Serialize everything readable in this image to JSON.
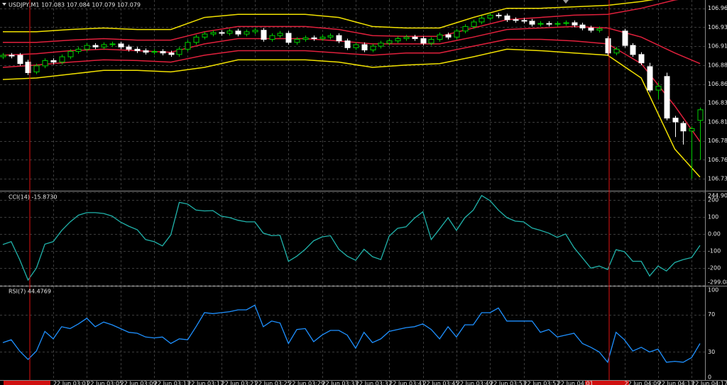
{
  "chart_data": [
    {
      "type": "candlestick",
      "title": "USDJPY,M1  107.083 107.084 107.079 107.079",
      "categories": [
        null,
        null,
        null,
        null,
        null,
        null,
        "22 Jun 03:01",
        null,
        null,
        null,
        "22 Jun 03:05",
        null,
        null,
        null,
        "22 Jun 03:09",
        null,
        null,
        null,
        "22 Jun 03:13",
        null,
        null,
        null,
        "22 Jun 03:17",
        null,
        null,
        null,
        "22 Jun 03:21",
        null,
        null,
        null,
        "22 Jun 03:25",
        null,
        null,
        null,
        "22 Jun 03:29",
        null,
        null,
        null,
        "22 Jun 03:33",
        null,
        null,
        null,
        "22 Jun 03:37",
        null,
        null,
        null,
        "22 Jun 03:41",
        null,
        null,
        null,
        "22 Jun 03:45",
        null,
        null,
        null,
        "22 Jun 03:49",
        null,
        null,
        null,
        "22 Jun 03:53",
        null,
        null,
        null,
        "22 Jun 03:57",
        null,
        null,
        null,
        "22 Jun 04:01",
        null,
        null,
        null,
        null,
        null,
        null,
        null,
        "22 Jun 04:09",
        null,
        null,
        null,
        "22 Jun 04:13",
        null,
        null,
        null,
        "22 Jun 04:17",
        null
      ],
      "open": [
        106.896,
        106.898,
        106.898,
        106.889,
        106.876,
        106.884,
        106.891,
        106.889,
        106.896,
        106.903,
        106.906,
        106.911,
        106.909,
        106.912,
        106.913,
        106.909,
        106.906,
        106.904,
        106.902,
        106.903,
        106.901,
        106.899,
        106.906,
        106.915,
        106.922,
        106.926,
        106.928,
        106.927,
        106.93,
        106.926,
        106.929,
        106.931,
        106.919,
        106.924,
        106.927,
        106.915,
        106.919,
        106.921,
        106.92,
        106.922,
        106.924,
        106.917,
        106.908,
        106.912,
        106.905,
        106.91,
        106.914,
        106.917,
        106.92,
        106.922,
        106.92,
        106.914,
        106.919,
        106.925,
        106.922,
        106.93,
        106.936,
        106.942,
        106.947,
        106.951,
        106.95,
        106.945,
        106.944,
        106.943,
        106.939,
        106.94,
        106.939,
        106.94,
        106.941,
        106.938,
        106.934,
        106.931,
        106.92,
        106.901,
        106.93,
        106.911,
        106.899,
        106.883,
        106.852,
        106.87,
        106.815,
        106.808,
        106.798,
        106.812
      ],
      "high": [
        106.901,
        106.901,
        106.901,
        106.892,
        106.887,
        106.894,
        106.894,
        106.899,
        106.906,
        106.909,
        106.914,
        106.914,
        106.915,
        106.916,
        106.916,
        106.912,
        106.909,
        106.907,
        106.906,
        106.906,
        106.904,
        106.909,
        106.918,
        106.925,
        106.929,
        106.931,
        106.931,
        106.933,
        106.933,
        106.932,
        106.934,
        106.934,
        106.927,
        106.93,
        106.93,
        106.922,
        106.924,
        106.924,
        106.925,
        106.927,
        106.927,
        106.92,
        106.915,
        106.915,
        106.913,
        106.917,
        106.92,
        106.923,
        106.925,
        106.925,
        106.923,
        106.922,
        106.928,
        106.928,
        106.933,
        106.939,
        106.945,
        106.95,
        106.954,
        106.954,
        106.953,
        106.948,
        106.947,
        106.946,
        106.943,
        106.943,
        106.943,
        106.944,
        106.944,
        106.941,
        106.937,
        106.936,
        106.923,
        106.909,
        106.933,
        106.914,
        106.902,
        106.888,
        106.862,
        106.875,
        106.818,
        106.811,
        106.804,
        106.829
      ],
      "low": [
        106.893,
        106.894,
        106.884,
        106.872,
        106.873,
        106.881,
        106.886,
        106.886,
        106.893,
        106.9,
        106.903,
        106.906,
        106.906,
        106.909,
        106.906,
        106.903,
        106.901,
        106.899,
        106.899,
        106.898,
        106.896,
        106.896,
        106.903,
        106.912,
        106.919,
        106.923,
        106.924,
        106.924,
        106.923,
        106.923,
        106.926,
        106.916,
        106.916,
        106.921,
        106.912,
        106.912,
        106.916,
        106.917,
        106.917,
        106.919,
        106.914,
        106.905,
        106.905,
        106.902,
        106.902,
        106.907,
        106.911,
        106.914,
        106.917,
        106.917,
        106.911,
        106.911,
        106.916,
        106.919,
        106.919,
        106.927,
        106.933,
        106.939,
        106.944,
        106.947,
        106.942,
        106.941,
        106.94,
        106.936,
        106.936,
        106.936,
        106.936,
        106.937,
        106.935,
        106.931,
        106.928,
        106.928,
        106.898,
        106.898,
        106.908,
        106.896,
        106.885,
        106.849,
        106.84,
        106.812,
        106.79,
        106.78,
        106.735,
        106.76
      ],
      "close": [
        106.898,
        106.897,
        106.887,
        106.875,
        106.884,
        106.891,
        106.889,
        106.896,
        106.903,
        106.906,
        106.911,
        106.909,
        106.912,
        106.913,
        106.909,
        106.906,
        106.904,
        106.902,
        106.903,
        106.901,
        106.899,
        106.906,
        106.915,
        106.922,
        106.926,
        106.928,
        106.927,
        106.93,
        106.926,
        106.929,
        106.931,
        106.919,
        106.924,
        106.927,
        106.915,
        106.919,
        106.921,
        106.92,
        106.922,
        106.924,
        106.917,
        106.908,
        106.912,
        106.905,
        106.91,
        106.914,
        106.917,
        106.92,
        106.922,
        106.92,
        106.914,
        106.919,
        106.925,
        106.922,
        106.93,
        106.936,
        106.942,
        106.947,
        106.951,
        106.95,
        106.945,
        106.944,
        106.943,
        106.939,
        106.94,
        106.939,
        106.94,
        106.941,
        106.938,
        106.934,
        106.931,
        106.933,
        106.901,
        106.906,
        106.911,
        106.899,
        106.888,
        106.852,
        106.857,
        106.815,
        106.81,
        106.798,
        106.801,
        106.826
      ],
      "up_color": "#00d000",
      "down_color": "#ffffff",
      "bands": [
        {
          "color": "#f0e000",
          "x": [
            0,
            4,
            8,
            12,
            16,
            20,
            24,
            28,
            32,
            36,
            40,
            44,
            48,
            52,
            56,
            60,
            64,
            68,
            72,
            76,
            80,
            83
          ],
          "values": [
            106.929,
            106.929,
            106.932,
            106.934,
            106.932,
            106.932,
            106.948,
            106.952,
            106.952,
            106.952,
            106.948,
            106.936,
            106.934,
            106.934,
            106.948,
            106.96,
            106.96,
            106.962,
            106.964,
            106.969,
            106.976,
            106.979
          ]
        },
        {
          "color": "#e0203c",
          "x": [
            0,
            4,
            8,
            12,
            16,
            20,
            24,
            28,
            32,
            36,
            40,
            44,
            48,
            52,
            56,
            60,
            64,
            68,
            72,
            76,
            80,
            83
          ],
          "values": [
            106.915,
            106.915,
            106.918,
            106.92,
            106.918,
            106.918,
            106.929,
            106.936,
            106.936,
            106.936,
            106.932,
            106.924,
            106.923,
            106.923,
            106.934,
            106.945,
            106.948,
            106.951,
            106.952,
            106.96,
            106.971,
            106.976
          ]
        },
        {
          "color": "#e0203c",
          "x": [
            0,
            4,
            8,
            12,
            16,
            20,
            24,
            28,
            32,
            36,
            40,
            44,
            48,
            52,
            56,
            60,
            64,
            68,
            72,
            76,
            80,
            83
          ],
          "values": [
            106.898,
            106.9,
            106.904,
            106.906,
            106.904,
            106.902,
            106.913,
            106.92,
            106.92,
            106.92,
            106.917,
            106.913,
            106.913,
            106.913,
            106.922,
            106.932,
            106.934,
            106.936,
            106.934,
            106.922,
            106.901,
            106.887
          ]
        },
        {
          "color": "#e0203c",
          "x": [
            0,
            4,
            8,
            12,
            16,
            20,
            24,
            28,
            32,
            36,
            40,
            44,
            48,
            52,
            56,
            60,
            64,
            68,
            72,
            76,
            80,
            83
          ],
          "values": [
            106.882,
            106.885,
            106.889,
            106.892,
            106.891,
            106.889,
            106.898,
            106.904,
            106.904,
            106.904,
            106.901,
            106.898,
            106.901,
            106.901,
            106.91,
            106.919,
            106.919,
            106.917,
            106.913,
            106.887,
            106.831,
            106.784
          ]
        },
        {
          "color": "#f0e000",
          "x": [
            0,
            4,
            8,
            12,
            16,
            20,
            24,
            28,
            32,
            36,
            40,
            44,
            48,
            52,
            56,
            60,
            64,
            68,
            72,
            76,
            80,
            83
          ],
          "values": [
            106.866,
            106.868,
            106.873,
            106.878,
            106.878,
            106.876,
            106.882,
            106.892,
            106.892,
            106.892,
            106.889,
            106.882,
            106.885,
            106.887,
            106.896,
            106.906,
            106.904,
            106.901,
            106.898,
            106.868,
            106.774,
            106.737
          ]
        }
      ],
      "ylim": [
        106.72,
        106.971
      ],
      "yticks": [
        {
          "value": 106.96,
          "label": "106.960"
        },
        106.935,
        {
          "value": 106.91,
          "label": "106.910"
        },
        106.885,
        {
          "value": 106.86,
          "label": "106.860"
        },
        106.835,
        {
          "value": 106.81,
          "label": "106.810"
        },
        106.785,
        {
          "value": 106.76,
          "label": "106.760"
        },
        106.735
      ],
      "grid": true
    },
    {
      "type": "line",
      "title": "CCI(14) -15.8730",
      "color": "#20b2aa",
      "values": [
        -62,
        -45,
        -150,
        -270,
        -200,
        -60,
        -45,
        20,
        70,
        110,
        125,
        125,
        120,
        105,
        70,
        45,
        25,
        -33,
        -45,
        -70,
        -5,
        185,
        175,
        140,
        135,
        137,
        104,
        96,
        80,
        71,
        71,
        5,
        -10,
        -8,
        -160,
        -130,
        -90,
        -40,
        -17,
        -10,
        -90,
        -130,
        -154,
        -90,
        -133,
        -150,
        -12,
        33,
        42,
        92,
        130,
        -33,
        30,
        95,
        21,
        95,
        140,
        225,
        195,
        140,
        96,
        75,
        71,
        35,
        21,
        5,
        -20,
        0,
        -80,
        -140,
        -200,
        -188,
        -208,
        -92,
        -104,
        -160,
        -160,
        -246,
        -188,
        -217,
        -167,
        -150,
        -138,
        -67
      ],
      "ylim": [
        -299.089,
        244.9075
      ],
      "yticks": [
        244.9075,
        200,
        100,
        {
          "value": 0,
          "label": "0.00"
        },
        -100,
        -200,
        {
          "value": -299.089,
          "label": "-299.0890"
        }
      ],
      "grid": true
    },
    {
      "type": "line",
      "title": "RSI(7) 44.4769",
      "color": "#1e90ff",
      "values": [
        40,
        43,
        31,
        22,
        31,
        52,
        44,
        57,
        55,
        60,
        66,
        57,
        62,
        59,
        55,
        51,
        50,
        46,
        45,
        46,
        39,
        44,
        43,
        57,
        72,
        71,
        72,
        73,
        75,
        75,
        80,
        57,
        63,
        61,
        39,
        54,
        55,
        41,
        48,
        53,
        53,
        48,
        34,
        51,
        40,
        44,
        52,
        54,
        56,
        57,
        60,
        54,
        44,
        57,
        46,
        59,
        59,
        72,
        72,
        77,
        63,
        63,
        63,
        63,
        51,
        54,
        46,
        48,
        50,
        39,
        35,
        30,
        19,
        51,
        43,
        31,
        35,
        30,
        33,
        19,
        20,
        19,
        24,
        39
      ],
      "ylim": [
        0,
        100
      ],
      "yticks": [
        100,
        70,
        30,
        0
      ],
      "grid": true
    }
  ]
}
